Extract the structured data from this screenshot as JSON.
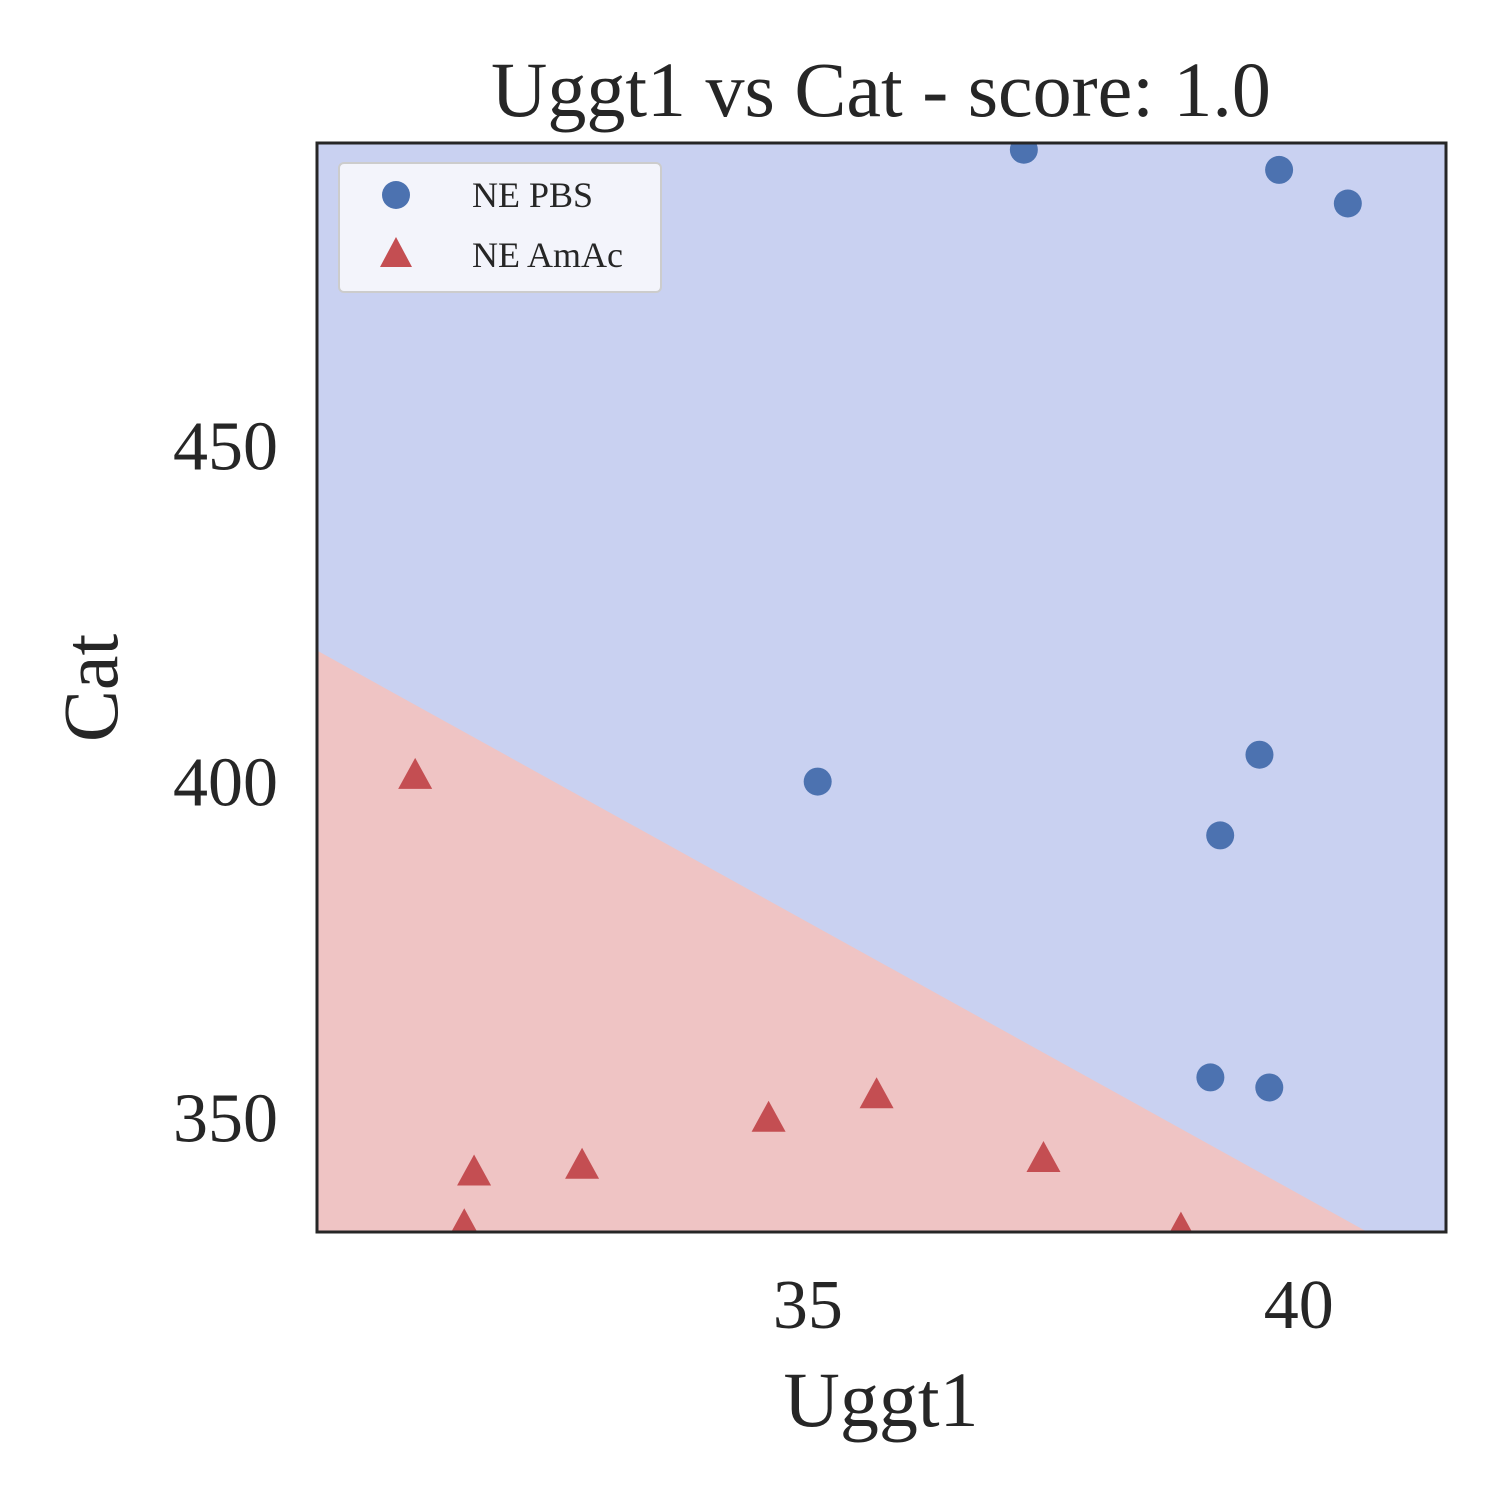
{
  "chart_data": {
    "type": "scatter",
    "title": "Uggt1 vs Cat - score: 1.0",
    "xlabel": "Uggt1",
    "ylabel": "Cat",
    "xlim": [
      30.0,
      41.5
    ],
    "ylim": [
      333,
      495
    ],
    "xticks": [
      35,
      40
    ],
    "yticks": [
      350,
      400,
      450
    ],
    "grid": false,
    "legend_position": "top-left",
    "decision_boundary": {
      "points": [
        [
          30.0,
          419.5
        ],
        [
          40.7,
          333.0
        ]
      ],
      "region_colors": {
        "upper": "#c9d1f1",
        "lower": "#efc4c4"
      }
    },
    "series": [
      {
        "name": "NE PBS",
        "marker": "circle",
        "color": "#4c72b0",
        "points": [
          [
            37.2,
            494
          ],
          [
            39.8,
            491
          ],
          [
            40.5,
            486
          ],
          [
            35.1,
            400
          ],
          [
            39.6,
            404
          ],
          [
            39.2,
            392
          ],
          [
            39.1,
            356
          ],
          [
            39.7,
            354.5
          ]
        ]
      },
      {
        "name": "NE AmAc",
        "marker": "triangle",
        "color": "#c44e52",
        "points": [
          [
            31.0,
            401
          ],
          [
            31.6,
            342
          ],
          [
            32.7,
            343
          ],
          [
            34.6,
            350
          ],
          [
            35.7,
            353.5
          ],
          [
            37.4,
            344
          ],
          [
            31.5,
            334
          ],
          [
            38.8,
            333.5
          ]
        ]
      }
    ]
  }
}
